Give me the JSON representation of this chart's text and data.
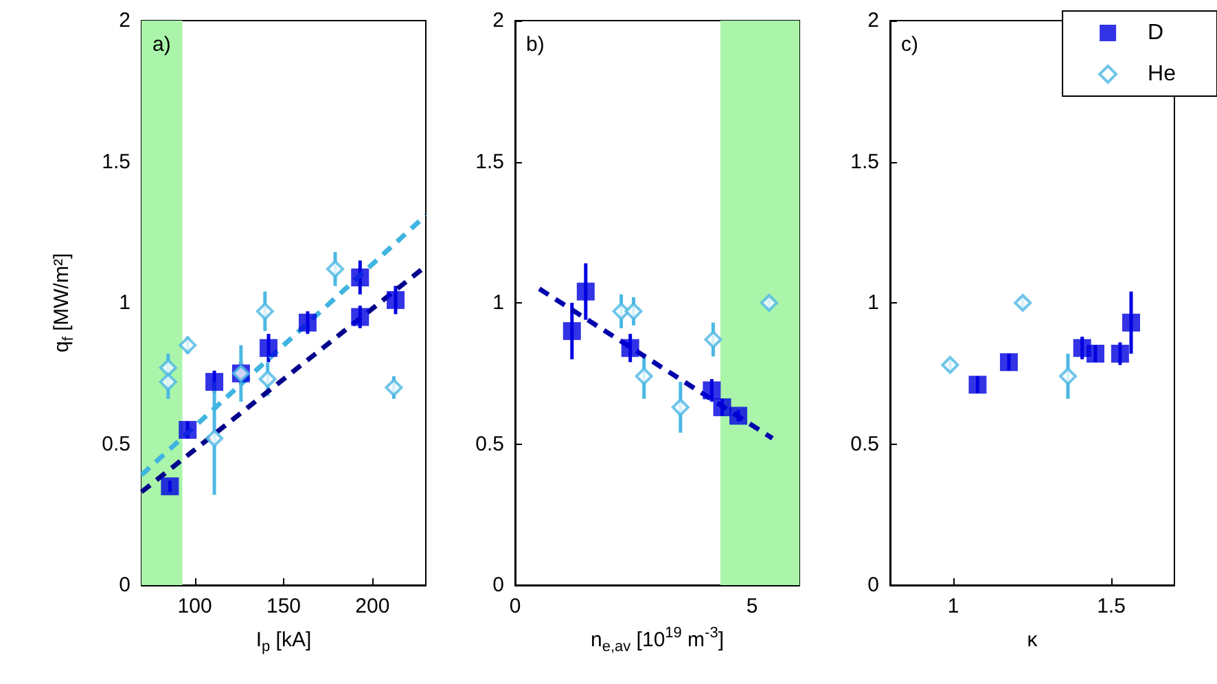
{
  "chart_data": [
    {
      "type": "scatter",
      "xlabel": "I$_{p}$ [kA]",
      "ylabel": "q$_{f}$ [MW/m²]",
      "annotations": [
        "a)"
      ],
      "xlim": [
        70,
        230
      ],
      "xticks": [
        100,
        150,
        200
      ],
      "ylim": [
        0,
        2
      ],
      "yticks": [
        0,
        0.5,
        1,
        1.5,
        2
      ],
      "bands": [
        {
          "axis": "x",
          "from": 70,
          "to": 93,
          "color": "#aaf5aa"
        }
      ],
      "series": [
        {
          "color": "#0000e0",
          "marker": "square",
          "x": [
            86,
            96,
            111,
            126,
            141.5,
            163.5,
            193,
            193,
            213
          ],
          "values": [
            0.35,
            0.55,
            0.72,
            0.75,
            0.84,
            0.93,
            0.95,
            1.09,
            1.01
          ],
          "errors": [
            0.02,
            0.03,
            0.04,
            0.04,
            0.05,
            0.04,
            0.04,
            0.06,
            0.05
          ]
        },
        {
          "color": "#4cb8e4",
          "marker": "diamond",
          "x": [
            85,
            85,
            96,
            111,
            126,
            139.5,
            141,
            179,
            212
          ],
          "values": [
            0.77,
            0.72,
            0.85,
            0.52,
            0.75,
            0.97,
            0.73,
            1.12,
            0.7
          ],
          "errors": [
            0.05,
            0.06,
            0.03,
            0.2,
            0.1,
            0.07,
            0.06,
            0.06,
            0.04
          ]
        },
        {
          "type": "line",
          "color": "#00008b",
          "line_style": "dashed",
          "marker": "none",
          "x": [
            70,
            230
          ],
          "values": [
            0.33,
            1.13
          ]
        },
        {
          "type": "line",
          "color": "#40b4e0",
          "line_style": "dashed",
          "marker": "none",
          "x": [
            70,
            230
          ],
          "values": [
            0.39,
            1.31
          ]
        }
      ]
    },
    {
      "type": "scatter",
      "xlabel": "n$_{e,av}$ [10$^{19}$ m$^{-3}$]",
      "annotations": [
        "b)"
      ],
      "xlim": [
        0,
        6
      ],
      "xticks": [
        0,
        5
      ],
      "ylim": [
        0,
        2
      ],
      "yticks": [
        0,
        0.5,
        1,
        1.5,
        2
      ],
      "bands": [
        {
          "axis": "x",
          "from": 4.33,
          "to": 6,
          "color": "#aaf5aa"
        }
      ],
      "series": [
        {
          "color": "#0000e0",
          "marker": "square",
          "x": [
            1.2,
            1.49,
            2.43,
            4.15,
            4.37,
            4.71
          ],
          "values": [
            0.9,
            1.04,
            0.84,
            0.69,
            0.63,
            0.6
          ],
          "errors": [
            0.1,
            0.1,
            0.05,
            0.04,
            0.03,
            0.02
          ]
        },
        {
          "color": "#4cb8e4",
          "marker": "diamond",
          "x": [
            2.24,
            2.5,
            2.72,
            3.49,
            4.18,
            5.36
          ],
          "values": [
            0.97,
            0.97,
            0.74,
            0.63,
            0.87,
            1.0
          ],
          "errors": [
            0.06,
            0.05,
            0.08,
            0.09,
            0.06,
            0.02
          ]
        },
        {
          "type": "line",
          "color": "#0000aa",
          "line_style": "dashed",
          "marker": "none",
          "x": [
            0.51,
            5.43
          ],
          "values": [
            1.05,
            0.52
          ]
        }
      ]
    },
    {
      "type": "scatter",
      "xlabel": "κ",
      "annotations": [
        "c)"
      ],
      "xlim": [
        0.8,
        1.7
      ],
      "xticks": [
        1,
        1.5
      ],
      "ylim": [
        0,
        2
      ],
      "yticks": [
        0,
        0.5,
        1,
        1.5,
        2
      ],
      "legend": "top right",
      "series": [
        {
          "name": "D",
          "color": "#0000e0",
          "marker": "square",
          "x": [
            1.077,
            1.176,
            1.408,
            1.45,
            1.528,
            1.563
          ],
          "values": [
            0.71,
            0.79,
            0.84,
            0.82,
            0.82,
            0.93
          ],
          "errors": [
            0.03,
            0.03,
            0.04,
            0.03,
            0.04,
            0.11
          ]
        },
        {
          "name": "He",
          "color": "#4cb8e4",
          "marker": "diamond",
          "x": [
            0.99,
            1.22,
            1.363
          ],
          "values": [
            0.78,
            1.0,
            0.74
          ],
          "errors": [
            0.02,
            0.02,
            0.08
          ]
        }
      ]
    }
  ]
}
